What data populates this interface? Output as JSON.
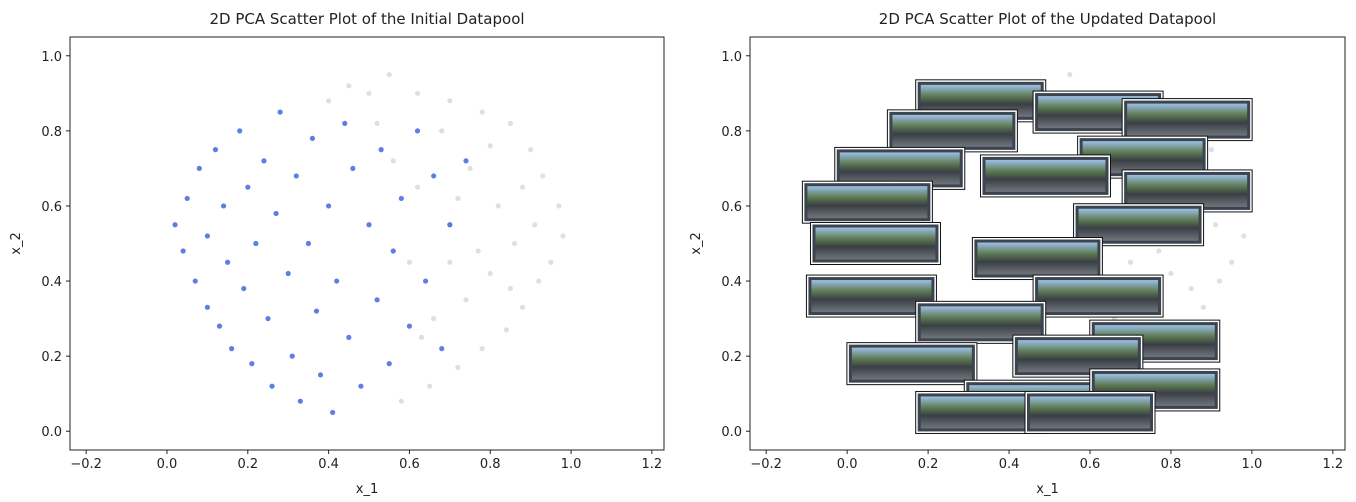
{
  "chart_data": [
    {
      "type": "scatter",
      "title": "2D PCA Scatter Plot of the Initial Datapool",
      "x_label": "x_1",
      "y_label": "x_2",
      "xlim": [
        -0.24,
        1.23
      ],
      "ylim": [
        -0.05,
        1.05
      ],
      "xticks": [
        {
          "value": -0.2,
          "label": "−0.2"
        },
        {
          "value": 0,
          "label": "0.0"
        },
        0.2,
        0.4,
        0.6,
        0.8,
        {
          "value": 1,
          "label": "1.0"
        },
        1.2
      ],
      "yticks": [
        {
          "value": 0,
          "label": "0.0"
        },
        0.2,
        0.4,
        0.6,
        0.8,
        {
          "value": 1,
          "label": "1.0"
        }
      ],
      "series": [
        {
          "color": "#d9d9d9",
          "x": [
            0.55,
            0.62,
            0.7,
            0.78,
            0.85,
            0.9,
            0.93,
            0.97,
            0.98,
            0.95,
            0.92,
            0.88,
            0.84,
            0.78,
            0.72,
            0.65,
            0.58,
            0.5,
            0.45,
            0.4,
            0.68,
            0.75,
            0.82,
            0.86,
            0.8,
            0.74,
            0.7,
            0.62,
            0.66,
            0.6,
            0.88,
            0.91,
            0.77,
            0.72,
            0.8,
            0.56,
            0.52,
            0.63,
            0.7,
            0.85
          ],
          "y": [
            0.95,
            0.9,
            0.88,
            0.85,
            0.82,
            0.75,
            0.68,
            0.6,
            0.52,
            0.45,
            0.4,
            0.33,
            0.27,
            0.22,
            0.17,
            0.12,
            0.08,
            0.9,
            0.92,
            0.88,
            0.8,
            0.7,
            0.6,
            0.5,
            0.42,
            0.35,
            0.55,
            0.65,
            0.3,
            0.45,
            0.65,
            0.55,
            0.48,
            0.62,
            0.76,
            0.72,
            0.82,
            0.25,
            0.45,
            0.38
          ]
        },
        {
          "color": "#4169e1",
          "x": [
            0.02,
            0.04,
            0.05,
            0.07,
            0.08,
            0.1,
            0.1,
            0.12,
            0.13,
            0.14,
            0.15,
            0.16,
            0.18,
            0.19,
            0.2,
            0.21,
            0.22,
            0.24,
            0.25,
            0.26,
            0.27,
            0.28,
            0.3,
            0.31,
            0.32,
            0.33,
            0.35,
            0.36,
            0.37,
            0.38,
            0.4,
            0.41,
            0.42,
            0.44,
            0.45,
            0.46,
            0.48,
            0.5,
            0.52,
            0.53,
            0.55,
            0.56,
            0.58,
            0.6,
            0.62,
            0.64,
            0.66,
            0.68,
            0.7,
            0.74
          ],
          "y": [
            0.55,
            0.48,
            0.62,
            0.4,
            0.7,
            0.33,
            0.52,
            0.75,
            0.28,
            0.6,
            0.45,
            0.22,
            0.8,
            0.38,
            0.65,
            0.18,
            0.5,
            0.72,
            0.3,
            0.12,
            0.58,
            0.85,
            0.42,
            0.2,
            0.68,
            0.08,
            0.5,
            0.78,
            0.32,
            0.15,
            0.6,
            0.05,
            0.4,
            0.82,
            0.25,
            0.7,
            0.12,
            0.55,
            0.35,
            0.75,
            0.18,
            0.48,
            0.62,
            0.28,
            0.8,
            0.4,
            0.68,
            0.22,
            0.55,
            0.72
          ]
        }
      ]
    },
    {
      "type": "scatter",
      "title": "2D PCA Scatter Plot of the Updated Datapool",
      "x_label": "x_1",
      "y_label": "x_2",
      "xlim": [
        -0.24,
        1.23
      ],
      "ylim": [
        -0.05,
        1.05
      ],
      "xticks": [
        {
          "value": -0.2,
          "label": "−0.2"
        },
        {
          "value": 0,
          "label": "0.0"
        },
        0.2,
        0.4,
        0.6,
        0.8,
        {
          "value": 1,
          "label": "1.0"
        },
        1.2
      ],
      "yticks": [
        {
          "value": 0,
          "label": "0.0"
        },
        0.2,
        0.4,
        0.6,
        0.8,
        {
          "value": 1,
          "label": "1.0"
        }
      ],
      "series": [
        {
          "color": "#d9d9d9",
          "x": [
            0.55,
            0.62,
            0.7,
            0.78,
            0.85,
            0.9,
            0.93,
            0.97,
            0.98,
            0.95,
            0.92,
            0.88,
            0.84,
            0.78,
            0.72,
            0.65,
            0.58,
            0.5,
            0.45,
            0.4,
            0.68,
            0.75,
            0.82,
            0.86,
            0.8,
            0.74,
            0.7,
            0.62,
            0.66,
            0.6,
            0.88,
            0.91,
            0.77,
            0.72,
            0.8,
            0.56,
            0.52,
            0.63,
            0.7,
            0.85
          ],
          "y": [
            0.95,
            0.9,
            0.88,
            0.85,
            0.82,
            0.75,
            0.68,
            0.6,
            0.52,
            0.45,
            0.4,
            0.33,
            0.27,
            0.22,
            0.17,
            0.12,
            0.08,
            0.9,
            0.92,
            0.88,
            0.8,
            0.7,
            0.6,
            0.5,
            0.42,
            0.35,
            0.55,
            0.65,
            0.3,
            0.45,
            0.65,
            0.55,
            0.48,
            0.62,
            0.76,
            0.72,
            0.82,
            0.25,
            0.45,
            0.38
          ]
        },
        {
          "marker": "image",
          "color": "#3c4450",
          "x": [
            0.33,
            0.62,
            0.84,
            0.26,
            0.73,
            0.13,
            0.49,
            0.84,
            0.05,
            0.72,
            0.07,
            0.47,
            0.62,
            0.06,
            0.33,
            0.76,
            0.16,
            0.57,
            0.45,
            0.76,
            0.33,
            0.6
          ],
          "y": [
            0.88,
            0.85,
            0.83,
            0.8,
            0.73,
            0.7,
            0.68,
            0.64,
            0.61,
            0.55,
            0.5,
            0.46,
            0.36,
            0.36,
            0.29,
            0.24,
            0.18,
            0.2,
            0.08,
            0.11,
            0.05,
            0.05
          ]
        }
      ]
    }
  ]
}
